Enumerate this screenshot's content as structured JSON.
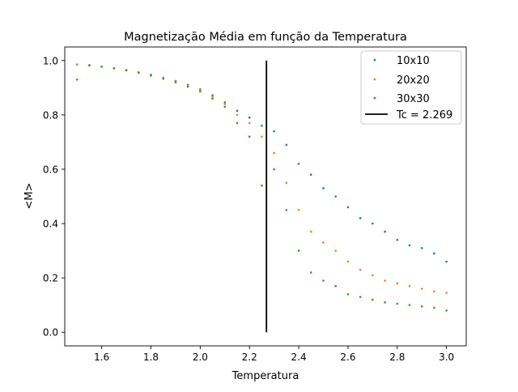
{
  "chart_data": {
    "type": "scatter",
    "title": "Magnetização Média em função da Temperatura",
    "xlabel": "Temperatura",
    "ylabel": "<M>",
    "xlim": [
      1.45,
      3.08
    ],
    "ylim": [
      -0.05,
      1.05
    ],
    "xticks": [
      1.6,
      1.8,
      2.0,
      2.2,
      2.4,
      2.6,
      2.8,
      3.0
    ],
    "xtick_labels": [
      "1.6",
      "1.8",
      "2.0",
      "2.2",
      "2.4",
      "2.6",
      "2.8",
      "3.0"
    ],
    "yticks": [
      0.0,
      0.2,
      0.4,
      0.6,
      0.8,
      1.0
    ],
    "ytick_labels": [
      "0.0",
      "0.2",
      "0.4",
      "0.6",
      "0.8",
      "1.0"
    ],
    "grid": false,
    "legend_position": "top-right",
    "colors": {
      "10x10": "#1f77b4",
      "20x20": "#ff7f0e",
      "30x30": "#2ca02c",
      "tc": "#000000"
    },
    "vline": {
      "label": "Tc = 2.269",
      "x": 2.269,
      "ymin": 0.0,
      "ymax": 1.0
    },
    "series": [
      {
        "name": "10x10",
        "x": [
          1.5,
          1.55,
          1.6,
          1.65,
          1.7,
          1.75,
          1.8,
          1.85,
          1.9,
          1.95,
          2.0,
          2.05,
          2.1,
          2.15,
          2.2,
          2.25,
          2.3,
          2.35,
          2.4,
          2.45,
          2.5,
          2.55,
          2.6,
          2.65,
          2.7,
          2.75,
          2.8,
          2.85,
          2.9,
          2.95,
          3.0
        ],
        "y": [
          0.985,
          0.983,
          0.978,
          0.972,
          0.965,
          0.957,
          0.948,
          0.937,
          0.925,
          0.911,
          0.894,
          0.872,
          0.846,
          0.815,
          0.79,
          0.76,
          0.74,
          0.69,
          0.62,
          0.58,
          0.53,
          0.5,
          0.46,
          0.42,
          0.4,
          0.37,
          0.34,
          0.32,
          0.31,
          0.29,
          0.26
        ]
      },
      {
        "name": "20x20",
        "x": [
          1.5,
          1.55,
          1.6,
          1.65,
          1.7,
          1.75,
          1.8,
          1.85,
          1.9,
          1.95,
          2.0,
          2.05,
          2.1,
          2.15,
          2.2,
          2.25,
          2.3,
          2.35,
          2.4,
          2.45,
          2.5,
          2.55,
          2.6,
          2.65,
          2.7,
          2.75,
          2.8,
          2.85,
          2.9,
          2.95,
          3.0
        ],
        "y": [
          0.986,
          0.983,
          0.978,
          0.972,
          0.965,
          0.957,
          0.947,
          0.936,
          0.923,
          0.908,
          0.89,
          0.867,
          0.84,
          0.8,
          0.77,
          0.72,
          0.66,
          0.55,
          0.45,
          0.37,
          0.33,
          0.3,
          0.26,
          0.23,
          0.21,
          0.19,
          0.18,
          0.17,
          0.16,
          0.15,
          0.145
        ]
      },
      {
        "name": "30x30",
        "x": [
          1.5,
          1.55,
          1.6,
          1.65,
          1.7,
          1.75,
          1.8,
          1.85,
          1.9,
          1.95,
          2.0,
          2.05,
          2.1,
          2.15,
          2.2,
          2.25,
          2.3,
          2.35,
          2.4,
          2.45,
          2.5,
          2.55,
          2.6,
          2.65,
          2.7,
          2.75,
          2.8,
          2.85,
          2.9,
          2.95,
          3.0
        ],
        "y": [
          0.93,
          0.982,
          0.977,
          0.971,
          0.964,
          0.955,
          0.945,
          0.933,
          0.92,
          0.904,
          0.886,
          0.86,
          0.83,
          0.77,
          0.72,
          0.54,
          0.6,
          0.45,
          0.3,
          0.22,
          0.19,
          0.17,
          0.14,
          0.13,
          0.12,
          0.11,
          0.105,
          0.1,
          0.095,
          0.09,
          0.08
        ]
      }
    ]
  }
}
